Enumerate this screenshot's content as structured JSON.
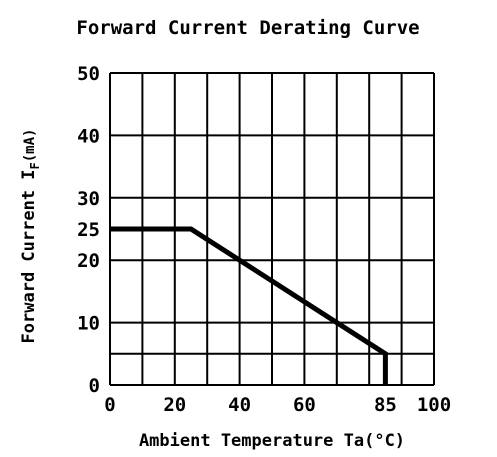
{
  "chart_data": {
    "type": "line",
    "title": "Forward Current Derating Curve",
    "xlabel": "Ambient Temperature Ta(°C)",
    "ylabel": "Forward Current IF(mA)",
    "ylabel_main": "Forward Current I",
    "ylabel_sub": "F",
    "ylabel_unit": "(mA)",
    "xlim": [
      0,
      100
    ],
    "ylim": [
      0,
      50
    ],
    "x_ticks": [
      0,
      20,
      40,
      60,
      85,
      100
    ],
    "x_tick_labels": [
      "0",
      "20",
      "40",
      "60",
      "85",
      "100"
    ],
    "y_ticks": [
      0,
      10,
      20,
      25,
      30,
      40,
      50
    ],
    "y_tick_labels": [
      "0",
      "10",
      "20",
      "25",
      "30",
      "40",
      "50"
    ],
    "grid": true,
    "x_gridlines": [
      0,
      10,
      20,
      30,
      40,
      50,
      60,
      70,
      80,
      90,
      100
    ],
    "y_gridlines": [
      0,
      5,
      10,
      20,
      30,
      40,
      50
    ],
    "series": [
      {
        "x": [
          0,
          25,
          85,
          85
        ],
        "y": [
          25,
          25,
          5,
          0
        ]
      }
    ],
    "line_color": "#000000"
  }
}
